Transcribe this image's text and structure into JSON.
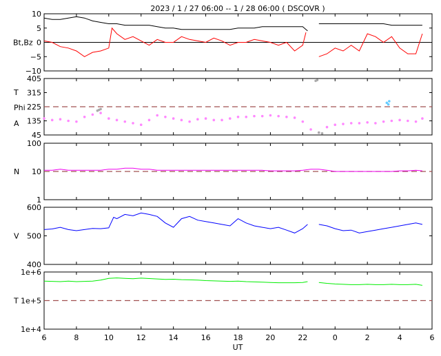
{
  "title": "2023 /   1 / 27   06:00  --   1 / 28   06:00 ( DSCOVR )",
  "xlabel": "UT",
  "x_ticks": [
    "6",
    "8",
    "10",
    "12",
    "14",
    "16",
    "18",
    "20",
    "22",
    "0",
    "2",
    "4",
    "6"
  ],
  "colors": {
    "bt": "#000000",
    "bz": "#ff0000",
    "temp_scatter": "#aaaaaa",
    "phi_scatter": "#66ccff",
    "angle_scatter": "#ff88ff",
    "density": "#ee00ee",
    "speed": "#0000ff",
    "temperature": "#00ee00",
    "reference_line": "#a05050"
  },
  "chart_data": [
    {
      "type": "line",
      "panel": "magnetic field",
      "ylabel": "Bt,Bz",
      "ylim": [
        -10,
        10
      ],
      "yticks": [
        "10",
        "5",
        "0",
        "−5",
        "−10"
      ],
      "zero_line": 0,
      "x_range_hours": [
        6,
        30
      ],
      "series": [
        {
          "key": "bt",
          "x": [
            6.0,
            6.5,
            7.0,
            7.5,
            8.0,
            8.5,
            9.0,
            9.5,
            10.0,
            10.5,
            11.0,
            11.5,
            12.0,
            12.5,
            13.0,
            13.5,
            14.0,
            14.5,
            15.0,
            15.5,
            16.0,
            16.5,
            17.0,
            17.5,
            18.0,
            18.5,
            19.0,
            19.5,
            20.0,
            20.5,
            21.0,
            21.5,
            22.0,
            22.3,
            22.5,
            23.0,
            23.5,
            24.0,
            24.5,
            25.0,
            25.5,
            26.0,
            26.5,
            27.0,
            27.5,
            28.0,
            28.5,
            29.0,
            29.4
          ],
          "y": [
            8.5,
            8.0,
            8.0,
            8.5,
            9.0,
            8.5,
            7.5,
            7.0,
            6.5,
            6.5,
            6.0,
            6.0,
            6.0,
            6.0,
            5.5,
            5.0,
            5.0,
            4.5,
            4.5,
            4.5,
            4.5,
            4.5,
            4.5,
            4.5,
            5.0,
            5.0,
            5.0,
            5.5,
            5.5,
            5.5,
            5.5,
            5.5,
            5.5,
            4.0,
            null,
            6.5,
            6.5,
            6.5,
            6.5,
            6.5,
            6.5,
            6.5,
            6.5,
            6.5,
            6.0,
            6.0,
            6.0,
            6.0,
            6.0
          ]
        },
        {
          "key": "bz",
          "x": [
            6.0,
            6.5,
            7.0,
            7.5,
            8.0,
            8.5,
            9.0,
            9.5,
            10.0,
            10.2,
            10.5,
            11.0,
            11.5,
            12.0,
            12.5,
            13.0,
            13.5,
            14.0,
            14.5,
            15.0,
            15.5,
            16.0,
            16.5,
            17.0,
            17.5,
            18.0,
            18.5,
            19.0,
            19.5,
            20.0,
            20.5,
            21.0,
            21.5,
            22.0,
            22.2,
            22.5,
            23.0,
            23.5,
            24.0,
            24.5,
            25.0,
            25.5,
            26.0,
            26.5,
            27.0,
            27.5,
            28.0,
            28.5,
            29.0,
            29.4
          ],
          "y": [
            0.5,
            0.0,
            -1.5,
            -2.0,
            -3.0,
            -5.0,
            -3.5,
            -3.0,
            -2.0,
            5.0,
            3.0,
            1.0,
            2.0,
            0.5,
            -1.0,
            1.0,
            0.0,
            0.0,
            2.0,
            1.0,
            0.5,
            0.0,
            1.5,
            0.5,
            -1.0,
            0.0,
            0.0,
            1.0,
            0.5,
            0.0,
            -1.0,
            0.0,
            -3.0,
            -1.0,
            3.5,
            null,
            -5.0,
            -4.0,
            -2.0,
            -3.0,
            -1.0,
            -3.0,
            3.0,
            2.0,
            0.0,
            2.0,
            -2.0,
            -4.0,
            -4.0,
            3.0
          ]
        }
      ]
    },
    {
      "type": "scatter",
      "panel": "angles",
      "ylabel_lines": [
        "T",
        "Phi",
        "A"
      ],
      "ylim": [
        45,
        405
      ],
      "yticks": [
        "405",
        "315",
        "225",
        "135",
        "45"
      ],
      "reference_line": 225,
      "series": [
        {
          "key": "angle_scatter",
          "x": [
            6.0,
            6.5,
            7.0,
            7.5,
            8.0,
            8.5,
            9.0,
            9.5,
            10.0,
            10.5,
            11.0,
            11.5,
            12.0,
            12.5,
            13.0,
            13.5,
            14.0,
            14.5,
            15.0,
            15.5,
            16.0,
            16.5,
            17.0,
            17.5,
            18.0,
            18.5,
            19.0,
            19.5,
            20.0,
            20.5,
            21.0,
            21.5,
            22.0,
            22.5,
            23.0,
            23.5,
            24.0,
            24.5,
            25.0,
            25.5,
            26.0,
            26.5,
            27.0,
            27.5,
            28.0,
            28.5,
            29.0,
            29.4
          ],
          "y": [
            150,
            140,
            145,
            135,
            130,
            160,
            175,
            185,
            150,
            140,
            130,
            120,
            110,
            140,
            170,
            160,
            150,
            140,
            130,
            145,
            150,
            140,
            140,
            150,
            160,
            160,
            165,
            165,
            170,
            165,
            160,
            155,
            130,
            80,
            60,
            95,
            110,
            115,
            120,
            120,
            125,
            120,
            130,
            135,
            140,
            135,
            130,
            150
          ]
        },
        {
          "key": "temp_scatter",
          "x": [
            9.3,
            9.4,
            9.5,
            22.8,
            22.9,
            23.0,
            23.2
          ],
          "y": [
            200,
            205,
            210,
            390,
            395,
            60,
            55
          ]
        },
        {
          "key": "phi_scatter",
          "x": [
            27.2,
            27.3,
            27.35
          ],
          "y": [
            250,
            240,
            260
          ]
        }
      ]
    },
    {
      "type": "line",
      "panel": "density",
      "ylabel": "N",
      "ylim": [
        1,
        100
      ],
      "scale": "log",
      "yticks": [
        "100",
        "10",
        "1"
      ],
      "reference_line": 10,
      "series": [
        {
          "key": "density",
          "x": [
            6.0,
            6.5,
            7.0,
            7.5,
            8.0,
            8.5,
            9.0,
            9.5,
            10.0,
            10.5,
            11.0,
            11.5,
            12.0,
            12.5,
            13.0,
            13.5,
            14.0,
            14.5,
            15.0,
            15.5,
            16.0,
            16.5,
            17.0,
            17.5,
            18.0,
            18.5,
            19.0,
            19.5,
            20.0,
            20.5,
            21.0,
            21.5,
            22.0,
            22.5,
            23.0,
            23.5,
            24.0,
            24.5,
            25.0,
            25.5,
            26.0,
            26.5,
            27.0,
            27.5,
            28.0,
            28.5,
            29.0,
            29.4
          ],
          "y": [
            11,
            11,
            12,
            11,
            11,
            11,
            11,
            11,
            12,
            12,
            13,
            13,
            12,
            12,
            11,
            11,
            11,
            11,
            11,
            11,
            11,
            11,
            11,
            11,
            11,
            11,
            11,
            11,
            10.5,
            10.5,
            10.5,
            10.5,
            11,
            12,
            12,
            11,
            10,
            10,
            10,
            10,
            10,
            10,
            10,
            10,
            10.5,
            10.5,
            11,
            10.5
          ]
        }
      ]
    },
    {
      "type": "line",
      "panel": "speed",
      "ylabel": "V",
      "ylim": [
        400,
        600
      ],
      "yticks": [
        "600",
        "500",
        "400"
      ],
      "series": [
        {
          "key": "speed",
          "x": [
            6.0,
            6.5,
            7.0,
            7.5,
            8.0,
            8.5,
            9.0,
            9.5,
            10.0,
            10.3,
            10.5,
            11.0,
            11.5,
            12.0,
            12.5,
            13.0,
            13.5,
            14.0,
            14.5,
            15.0,
            15.5,
            16.0,
            16.5,
            17.0,
            17.5,
            18.0,
            18.5,
            19.0,
            19.5,
            20.0,
            20.5,
            21.0,
            21.5,
            22.0,
            22.3,
            22.5,
            23.0,
            23.5,
            24.0,
            24.5,
            25.0,
            25.5,
            26.0,
            26.5,
            27.0,
            27.5,
            28.0,
            28.5,
            29.0,
            29.4
          ],
          "y": [
            522,
            524,
            530,
            522,
            518,
            522,
            526,
            525,
            528,
            565,
            560,
            575,
            570,
            580,
            575,
            568,
            545,
            530,
            560,
            568,
            555,
            550,
            545,
            540,
            535,
            560,
            545,
            535,
            530,
            525,
            530,
            520,
            510,
            525,
            540,
            null,
            540,
            535,
            525,
            518,
            520,
            510,
            515,
            520,
            525,
            530,
            535,
            540,
            545,
            540
          ]
        }
      ]
    },
    {
      "type": "line",
      "panel": "temperature",
      "ylabel": "T",
      "ylim": [
        10000,
        1000000
      ],
      "scale": "log",
      "yticks": [
        "1e+6",
        "1e+5",
        "1e+4"
      ],
      "reference_line": 100000,
      "series": [
        {
          "key": "temperature",
          "x": [
            6.0,
            6.5,
            7.0,
            7.5,
            8.0,
            8.5,
            9.0,
            9.5,
            10.0,
            10.5,
            11.0,
            11.5,
            12.0,
            12.5,
            13.0,
            13.5,
            14.0,
            14.5,
            15.0,
            15.5,
            16.0,
            16.5,
            17.0,
            17.5,
            18.0,
            18.5,
            19.0,
            19.5,
            20.0,
            20.5,
            21.0,
            21.5,
            22.0,
            22.3,
            22.5,
            23.0,
            23.5,
            24.0,
            24.5,
            25.0,
            25.5,
            26.0,
            26.5,
            27.0,
            27.5,
            28.0,
            28.5,
            29.0,
            29.4
          ],
          "y": [
            480000,
            470000,
            460000,
            480000,
            460000,
            470000,
            480000,
            520000,
            600000,
            620000,
            600000,
            580000,
            610000,
            590000,
            570000,
            550000,
            560000,
            540000,
            530000,
            520000,
            500000,
            490000,
            480000,
            470000,
            480000,
            460000,
            450000,
            440000,
            430000,
            420000,
            420000,
            420000,
            430000,
            460000,
            null,
            430000,
            400000,
            380000,
            370000,
            360000,
            360000,
            370000,
            360000,
            360000,
            370000,
            360000,
            360000,
            370000,
            340000
          ]
        }
      ]
    }
  ]
}
